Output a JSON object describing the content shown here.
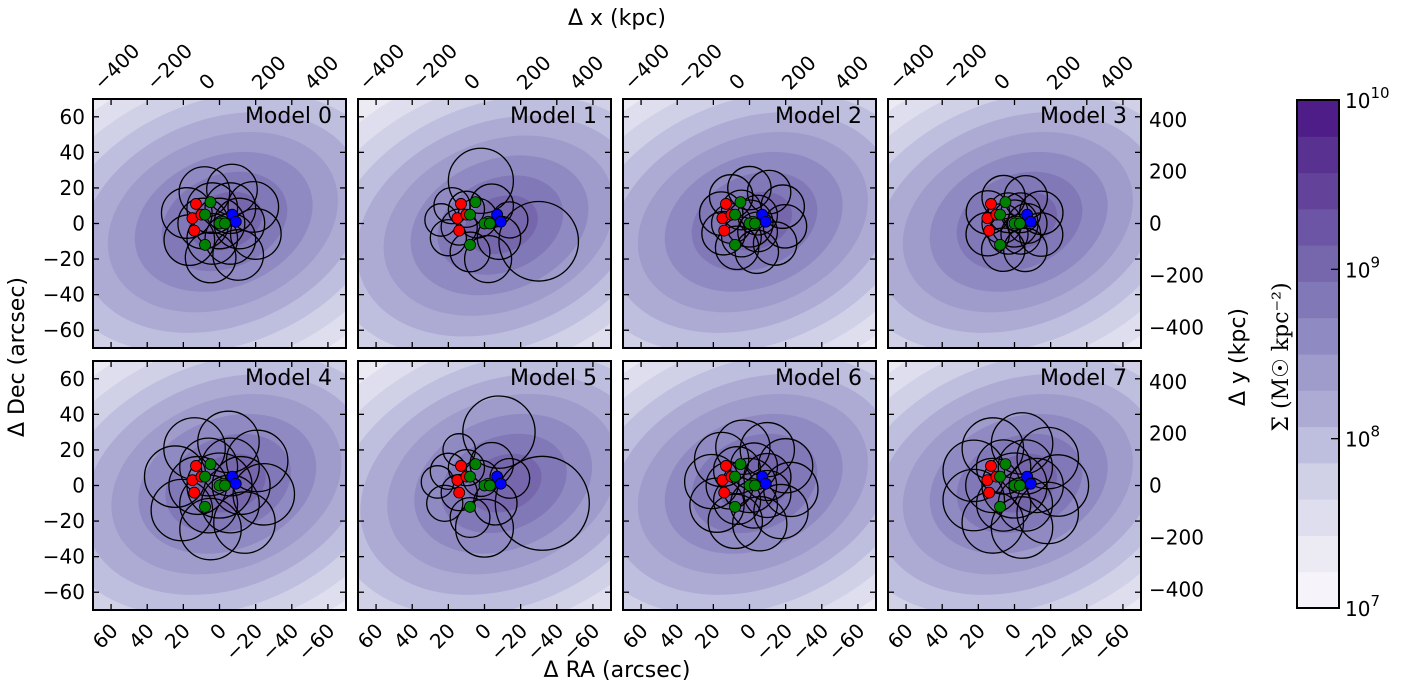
{
  "chart_data": {
    "type": "contour",
    "panels": [
      {
        "title": "Model 0"
      },
      {
        "title": "Model 1"
      },
      {
        "title": "Model 2"
      },
      {
        "title": "Model 3"
      },
      {
        "title": "Model 4"
      },
      {
        "title": "Model 5"
      },
      {
        "title": "Model 6"
      },
      {
        "title": "Model 7"
      }
    ],
    "xlabel_bottom": "Δ RA (arcsec)",
    "xlabel_top": "Δ x (kpc)",
    "ylabel_left": "Δ Dec (arcsec)",
    "ylabel_right": "Δ y (kpc)",
    "colorbar_label": "Σ (M☉ kpc⁻²)",
    "xlim_arcsec": [
      70,
      -70
    ],
    "ylim_arcsec": [
      -70,
      70
    ],
    "xticks_arcsec": [
      "60",
      "40",
      "20",
      "0",
      "−20",
      "−40",
      "−60"
    ],
    "yticks_arcsec": [
      "60",
      "40",
      "20",
      "0",
      "−20",
      "−40",
      "−60"
    ],
    "xticks_kpc": [
      "−400",
      "−200",
      "0",
      "200",
      "400"
    ],
    "yticks_kpc": [
      "400",
      "200",
      "0",
      "−200",
      "−400"
    ],
    "colorbar": {
      "scale": "log",
      "range": [
        10000000.0,
        10000000000.0
      ],
      "tick_labels": [
        {
          "base": "10",
          "exp": "10"
        },
        {
          "base": "10",
          "exp": "9"
        },
        {
          "base": "10",
          "exp": "8"
        },
        {
          "base": "10",
          "exp": "7"
        }
      ],
      "levels": 14
    },
    "markers": {
      "red": [
        [
          13,
          11
        ],
        [
          15,
          3
        ],
        [
          14,
          -4
        ],
        [
          10,
          5
        ]
      ],
      "green": [
        [
          8,
          5
        ],
        [
          5,
          12
        ],
        [
          -2,
          1
        ],
        [
          8,
          -12
        ],
        [
          0,
          0
        ],
        [
          -3,
          0
        ]
      ],
      "blue": [
        [
          -7,
          5
        ],
        [
          -9,
          1
        ]
      ]
    },
    "colors": {
      "red": "#ff0000",
      "green": "#008000",
      "blue": "#0000ff",
      "colormap": [
        "#f6f4fa",
        "#ecebf4",
        "#dfdeee",
        "#d0d0e7",
        "#bebedf",
        "#adabd4",
        "#9f9bcb",
        "#8f8ac1",
        "#8179b7",
        "#7667ac",
        "#6c55a4",
        "#63439a",
        "#593191",
        "#4f1d88"
      ]
    }
  }
}
